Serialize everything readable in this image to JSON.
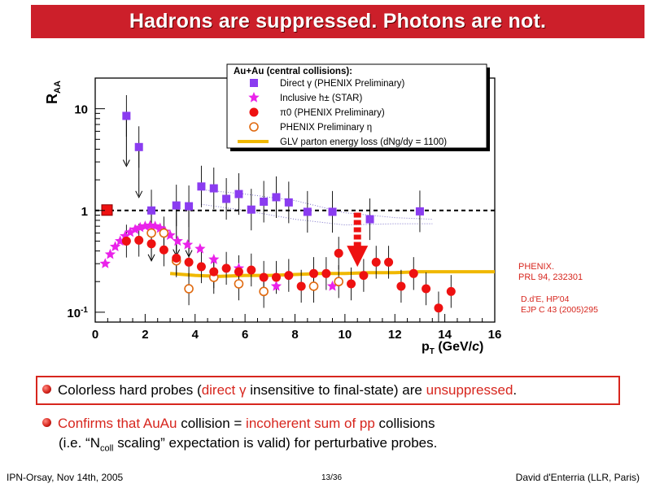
{
  "slide": {
    "title": "Hadrons are suppressed. Photons are not."
  },
  "chart_data": {
    "type": "scatter",
    "title": "",
    "xlabel": "pT (GeV/c)",
    "ylabel": "RAA",
    "xlim": [
      0,
      16
    ],
    "ylim": [
      0.08,
      20
    ],
    "yscale": "log",
    "xticks": [
      "0",
      "2",
      "4",
      "6",
      "8",
      "10",
      "12",
      "14",
      "16"
    ],
    "yticks": [
      "10^-1",
      "1",
      "10"
    ],
    "legend_title": "Au+Au (central collisions):",
    "legend_position": "top-right",
    "reference_line": 1.0,
    "normalization_box_value": 1.0,
    "series": [
      {
        "name": "Direct γ (PHENIX Preliminary)",
        "marker": "square",
        "color": "#8a3cf0",
        "points": [
          [
            1.25,
            8.5
          ],
          [
            1.75,
            4.2
          ],
          [
            2.25,
            1.0
          ],
          [
            3.25,
            1.12
          ],
          [
            3.75,
            1.1
          ],
          [
            4.25,
            1.72
          ],
          [
            4.75,
            1.65
          ],
          [
            5.25,
            1.3
          ],
          [
            5.75,
            1.45
          ],
          [
            6.25,
            1.02
          ],
          [
            6.75,
            1.22
          ],
          [
            7.25,
            1.35
          ],
          [
            7.75,
            1.2
          ],
          [
            8.5,
            0.97
          ],
          [
            9.5,
            0.97
          ],
          [
            11.0,
            0.82
          ],
          [
            13.0,
            0.98
          ]
        ],
        "upper_limits": [
          [
            1.25,
            8.5
          ],
          [
            1.75,
            4.2
          ],
          [
            2.25,
            1.0
          ],
          [
            3.25,
            1.12
          ],
          [
            3.75,
            1.1
          ]
        ]
      },
      {
        "name": "Inclusive h± (STAR)",
        "marker": "star",
        "color": "#ea22ea",
        "points": [
          [
            0.4,
            0.3
          ],
          [
            0.6,
            0.37
          ],
          [
            0.8,
            0.44
          ],
          [
            1.0,
            0.5
          ],
          [
            1.2,
            0.56
          ],
          [
            1.4,
            0.61
          ],
          [
            1.6,
            0.65
          ],
          [
            1.8,
            0.68
          ],
          [
            2.0,
            0.7
          ],
          [
            2.2,
            0.71
          ],
          [
            2.4,
            0.7
          ],
          [
            2.6,
            0.67
          ],
          [
            2.8,
            0.62
          ],
          [
            3.0,
            0.57
          ],
          [
            3.3,
            0.5
          ],
          [
            3.7,
            0.46
          ],
          [
            4.2,
            0.42
          ],
          [
            4.75,
            0.33
          ],
          [
            5.75,
            0.27
          ],
          [
            7.25,
            0.18
          ],
          [
            9.5,
            0.18
          ]
        ]
      },
      {
        "name": "π0 (PHENIX Preliminary)",
        "marker": "circle",
        "color": "#ee1111",
        "points": [
          [
            1.25,
            0.5
          ],
          [
            1.75,
            0.51
          ],
          [
            2.25,
            0.47
          ],
          [
            2.75,
            0.41
          ],
          [
            3.25,
            0.34
          ],
          [
            3.75,
            0.31
          ],
          [
            4.25,
            0.28
          ],
          [
            4.75,
            0.25
          ],
          [
            5.25,
            0.27
          ],
          [
            5.75,
            0.25
          ],
          [
            6.25,
            0.26
          ],
          [
            6.75,
            0.22
          ],
          [
            7.25,
            0.22
          ],
          [
            7.75,
            0.23
          ],
          [
            8.25,
            0.18
          ],
          [
            8.75,
            0.24
          ],
          [
            9.25,
            0.24
          ],
          [
            9.75,
            0.38
          ],
          [
            10.25,
            0.19
          ],
          [
            10.75,
            0.23
          ],
          [
            11.25,
            0.31
          ],
          [
            11.75,
            0.31
          ],
          [
            12.25,
            0.18
          ],
          [
            12.75,
            0.24
          ],
          [
            13.25,
            0.17
          ],
          [
            13.75,
            0.11
          ],
          [
            14.25,
            0.16
          ]
        ]
      },
      {
        "name": "PHENIX Preliminary η",
        "marker": "open-circle",
        "color": "#e06a10",
        "points": [
          [
            2.25,
            0.6
          ],
          [
            2.75,
            0.6
          ],
          [
            3.25,
            0.32
          ],
          [
            3.75,
            0.17
          ],
          [
            4.75,
            0.22
          ],
          [
            5.75,
            0.19
          ],
          [
            6.75,
            0.16
          ],
          [
            8.75,
            0.18
          ],
          [
            9.75,
            0.2
          ]
        ]
      },
      {
        "name": "GLV parton energy loss (dNg/dy = 1100)",
        "marker": "line",
        "color": "#f0b800",
        "points": [
          [
            3.0,
            0.24
          ],
          [
            4.0,
            0.23
          ],
          [
            5.0,
            0.225
          ],
          [
            6.0,
            0.23
          ],
          [
            7.0,
            0.23
          ],
          [
            8.0,
            0.235
          ],
          [
            9.0,
            0.24
          ],
          [
            10.0,
            0.24
          ],
          [
            11.0,
            0.245
          ],
          [
            12.0,
            0.245
          ],
          [
            13.0,
            0.25
          ],
          [
            14.0,
            0.25
          ],
          [
            16.0,
            0.25
          ]
        ]
      }
    ],
    "expectation_band": {
      "upper": [
        [
          4.25,
          1.6
        ],
        [
          6.0,
          1.45
        ],
        [
          8.0,
          1.25
        ],
        [
          10.0,
          0.95
        ],
        [
          12.0,
          0.85
        ],
        [
          13.5,
          0.82
        ]
      ],
      "lower": [
        [
          4.25,
          1.15
        ],
        [
          6.0,
          1.0
        ],
        [
          8.0,
          0.82
        ],
        [
          10.0,
          0.72
        ],
        [
          12.0,
          0.74
        ],
        [
          13.5,
          0.74
        ]
      ]
    },
    "suppression_arrow": {
      "x": 10.5,
      "from": 0.95,
      "to": 0.3
    }
  },
  "annotations": {
    "ref1_line1": "PHENIX.",
    "ref1_line2": "PRL 94, 232301",
    "ref2_line1": "D.d'E, HP'04",
    "ref2_line2": "EJP C 43 (2005)295"
  },
  "bullets": {
    "b1_part1": "Colorless hard probes (",
    "b1_part2": "direct γ",
    "b1_part3": " insensitive to final-state) are ",
    "b1_part4": "unsuppressed",
    "b1_part5": ".",
    "b2_part1": "Confirms that AuAu",
    "b2_part2": " collision = ",
    "b2_part3": "incoherent sum of pp",
    "b2_part4": " collisions",
    "b2_line2_a": "(i.e. “N",
    "b2_line2_sub": "coll",
    "b2_line2_b": " scaling” expectation is valid) for perturbative probes."
  },
  "footer": {
    "left": "IPN-Orsay, Nov 14th, 2005",
    "center": "13/36",
    "right": "David d'Enterria (LLR, Paris)"
  },
  "colors": {
    "title_bar": "#cc1f2a",
    "accent_red": "#d7261e"
  }
}
